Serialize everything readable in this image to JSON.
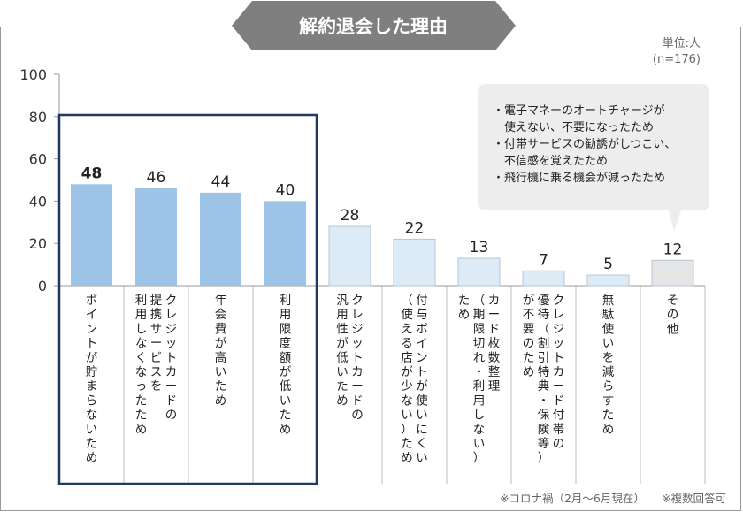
{
  "chart_data": {
    "type": "bar",
    "title": "解約退会した理由",
    "unit_note": "単位:人",
    "sample_note": "(n=176)",
    "ylim": [
      0,
      100
    ],
    "yticks": [
      "100",
      "80",
      "60",
      "40",
      "20",
      "0"
    ],
    "categories": [
      "ポイントが貯まらないため",
      "クレジットカードの提携サービスを利用しなくなったため",
      "年会費が高いため",
      "利用限度額が低いため",
      "クレジットカードの汎用性が低いため",
      "付与ポイントが使いにくい（使える店が少ない）ため",
      "カード枚数整理（期限切れ・利用しない）ため",
      "クレジットカード付帯の優待（割引特典・保険等）が不要のため",
      "無駄使いを減らすため",
      "その他"
    ],
    "category_lines": [
      [
        "ポイントが貯まらないため"
      ],
      [
        "クレジットカードの",
        "提携サービスを",
        "利用しなくなったため"
      ],
      [
        "年会費が高いため"
      ],
      [
        "利用限度額が低いため"
      ],
      [
        "クレジットカードの",
        "汎用性が低いため"
      ],
      [
        "付与ポイントが使いにくい",
        "（使える店が少ない）ため"
      ],
      [
        "カード枚数整理",
        "（期限切れ・利用しない）",
        "ため"
      ],
      [
        "クレジットカード付帯の",
        "優待（割引特典・保険等）",
        "が不要のため"
      ],
      [
        "無駄使いを減らすため"
      ],
      [
        "その他"
      ]
    ],
    "values": [
      48,
      46,
      44,
      40,
      28,
      22,
      13,
      7,
      5,
      12
    ],
    "value_labels": [
      "48",
      "46",
      "44",
      "40",
      "28",
      "22",
      "13",
      "7",
      "5",
      "12"
    ],
    "highlighted": [
      true,
      true,
      true,
      true,
      false,
      false,
      false,
      false,
      false,
      false
    ],
    "other_callout": [
      "・電子マネーのオートチャージが",
      "　使えない、不要になったため",
      "・付帯サービスの勧誘がしつこい、",
      "　不信感を覚えたため",
      "・飛行機に乗る機会が減ったため"
    ],
    "footnotes": [
      "※コロナ禍（2月～6月現在）",
      "※複数回答可"
    ],
    "colors": {
      "highlight_bar": "#9dc3e6",
      "normal_bar": "#ddebf7",
      "other_bar": "#e6e6e6",
      "highlight_box": "#1f3864",
      "title_bg": "#7f7f7f",
      "callout_bg": "#ededed"
    }
  }
}
